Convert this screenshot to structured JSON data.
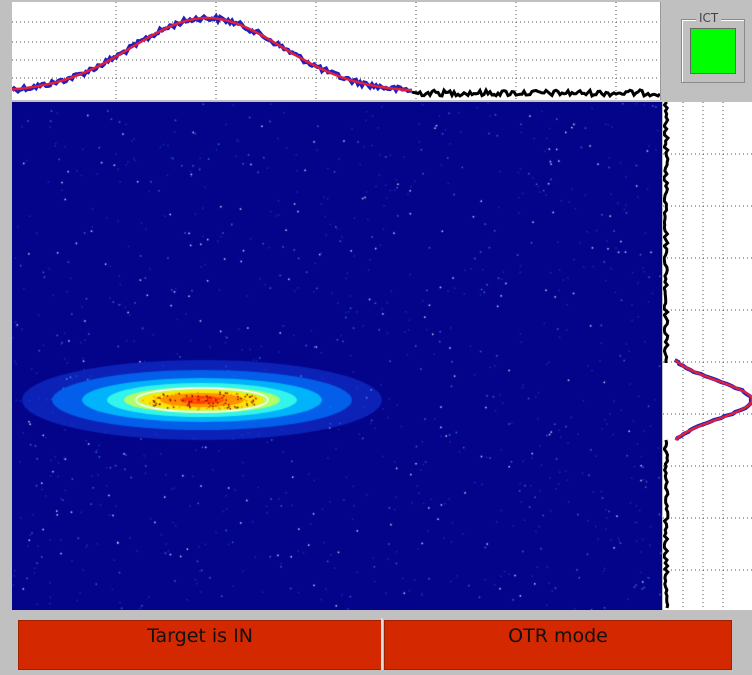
{
  "ict": {
    "label": "ICT",
    "indicator_color": "#00ff00"
  },
  "status": {
    "target": "Target is IN",
    "mode": "OTR mode",
    "background_color": "#d42800"
  },
  "colors": {
    "image_background": "#04048a",
    "projection_points": "#2020c0",
    "fit_curve": "#e0203a",
    "noise_points": "#000000"
  },
  "icons": {
    "ict": "ict-status-indicator"
  }
}
